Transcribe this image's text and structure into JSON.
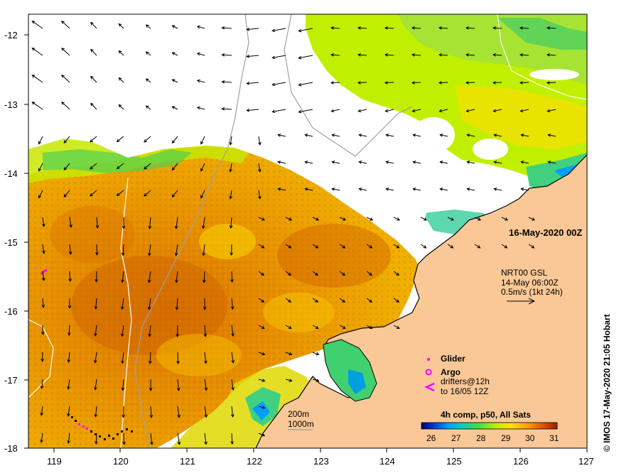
{
  "map": {
    "date_label": "16-May-2020 00Z",
    "credit": "© IMOS 17-May-2020 21:05 Hobart",
    "x_ticks": [
      "119",
      "120",
      "121",
      "122",
      "123",
      "124",
      "125",
      "126",
      "127"
    ],
    "y_ticks": [
      "-12",
      "-13",
      "-14",
      "-15",
      "-16",
      "-17",
      "-18"
    ],
    "current_info": {
      "line1": "NRT00 GSL",
      "line2": "14-May 06:00Z",
      "line3": "0.5m/s (1kt 24h)"
    },
    "legend": {
      "glider": "Glider",
      "argo": "Argo",
      "drifters1": "drifters@12h",
      "drifters2": "to 16/05 12Z"
    },
    "isobaths": {
      "label_200": "200m",
      "label_1000": "1000m"
    },
    "colorbar": {
      "title": "4h comp, p50, All Sats",
      "ticks": [
        "26",
        "27",
        "28",
        "29",
        "30",
        "31"
      ],
      "colors": [
        "#00007a",
        "#0050ff",
        "#00c0d0",
        "#40e040",
        "#d0f000",
        "#ffd000",
        "#ff9000",
        "#e05000",
        "#a02000"
      ]
    },
    "colors": {
      "land": "#fac896",
      "glider": "#ff00ff",
      "argo": "#ff00ff",
      "drifter": "#ff00ff"
    }
  }
}
